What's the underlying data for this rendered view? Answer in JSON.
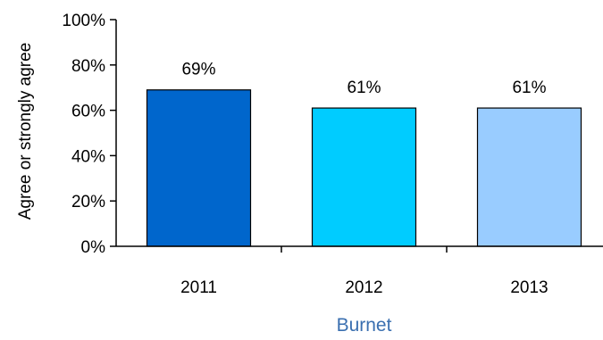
{
  "chart_data": {
    "type": "bar",
    "categories": [
      "2011",
      "2012",
      "2013"
    ],
    "values": [
      69,
      61,
      61
    ],
    "data_labels": [
      "69%",
      "61%",
      "61%"
    ],
    "ylabel": "Agree or strongly agree",
    "xlabel": "Burnet",
    "ylim": [
      0,
      100
    ],
    "yticks": [
      0,
      20,
      40,
      60,
      80,
      100
    ],
    "ytick_labels": [
      "0%",
      "20%",
      "40%",
      "60%",
      "80%",
      "100%"
    ],
    "colors": [
      "#0066cc",
      "#00ccff",
      "#99ccff"
    ],
    "grid": false,
    "legend": "none"
  }
}
